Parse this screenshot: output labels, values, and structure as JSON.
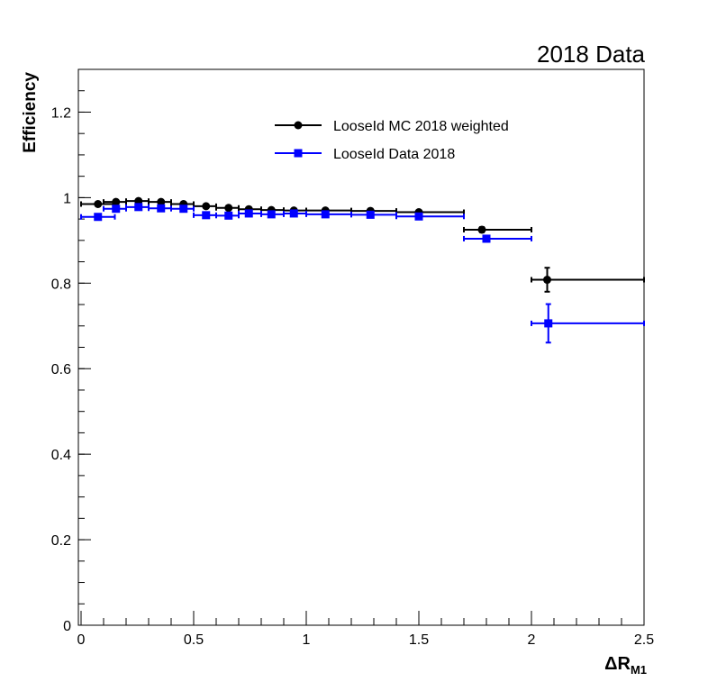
{
  "chart_data": {
    "type": "scatter",
    "title": "2018 Data",
    "xlabel": "ΔR",
    "xlabel_sub": "M1",
    "ylabel": "Efficiency",
    "xlim": [
      0,
      2.5
    ],
    "ylim": [
      0,
      1.3
    ],
    "x_ticks": [
      0,
      0.5,
      1,
      1.5,
      2,
      2.5
    ],
    "x_tick_labels": [
      "0",
      "0.5",
      "1",
      "1.5",
      "2",
      "2.5"
    ],
    "y_ticks": [
      0,
      0.2,
      0.4,
      0.6,
      0.8,
      1,
      1.2
    ],
    "y_tick_labels": [
      "0",
      "0.2",
      "0.4",
      "0.6",
      "0.8",
      "1",
      "1.2"
    ],
    "grid": false,
    "legend_position": "top-center",
    "series": [
      {
        "name": "LooseId MC 2018 weighted",
        "color": "#000000",
        "marker": "circle",
        "points": [
          {
            "x": 0.075,
            "xlo": 0.0,
            "xhi": 0.15,
            "y": 0.985,
            "ylo": 0.982,
            "yhi": 0.988
          },
          {
            "x": 0.155,
            "xlo": 0.1,
            "xhi": 0.2,
            "y": 0.99,
            "ylo": 0.987,
            "yhi": 0.993
          },
          {
            "x": 0.255,
            "xlo": 0.2,
            "xhi": 0.3,
            "y": 0.992,
            "ylo": 0.989,
            "yhi": 0.995
          },
          {
            "x": 0.355,
            "xlo": 0.3,
            "xhi": 0.4,
            "y": 0.99,
            "ylo": 0.987,
            "yhi": 0.993
          },
          {
            "x": 0.455,
            "xlo": 0.4,
            "xhi": 0.5,
            "y": 0.985,
            "ylo": 0.982,
            "yhi": 0.988
          },
          {
            "x": 0.555,
            "xlo": 0.5,
            "xhi": 0.6,
            "y": 0.98,
            "ylo": 0.977,
            "yhi": 0.983
          },
          {
            "x": 0.655,
            "xlo": 0.6,
            "xhi": 0.7,
            "y": 0.976,
            "ylo": 0.973,
            "yhi": 0.979
          },
          {
            "x": 0.745,
            "xlo": 0.7,
            "xhi": 0.8,
            "y": 0.973,
            "ylo": 0.97,
            "yhi": 0.976
          },
          {
            "x": 0.845,
            "xlo": 0.8,
            "xhi": 0.9,
            "y": 0.971,
            "ylo": 0.968,
            "yhi": 0.974
          },
          {
            "x": 0.945,
            "xlo": 0.9,
            "xhi": 1.0,
            "y": 0.97,
            "ylo": 0.967,
            "yhi": 0.973
          },
          {
            "x": 1.085,
            "xlo": 1.0,
            "xhi": 1.2,
            "y": 0.97,
            "ylo": 0.967,
            "yhi": 0.973
          },
          {
            "x": 1.285,
            "xlo": 1.2,
            "xhi": 1.4,
            "y": 0.969,
            "ylo": 0.966,
            "yhi": 0.972
          },
          {
            "x": 1.5,
            "xlo": 1.4,
            "xhi": 1.7,
            "y": 0.966,
            "ylo": 0.963,
            "yhi": 0.969
          },
          {
            "x": 1.78,
            "xlo": 1.7,
            "xhi": 2.0,
            "y": 0.925,
            "ylo": 0.919,
            "yhi": 0.931
          },
          {
            "x": 2.07,
            "xlo": 2.0,
            "xhi": 2.5,
            "y": 0.808,
            "ylo": 0.78,
            "yhi": 0.836
          }
        ]
      },
      {
        "name": "LooseId Data 2018",
        "color": "#0000ff",
        "marker": "square",
        "points": [
          {
            "x": 0.075,
            "xlo": 0.0,
            "xhi": 0.15,
            "y": 0.955,
            "ylo": 0.952,
            "yhi": 0.958
          },
          {
            "x": 0.155,
            "xlo": 0.1,
            "xhi": 0.2,
            "y": 0.974,
            "ylo": 0.971,
            "yhi": 0.977
          },
          {
            "x": 0.255,
            "xlo": 0.2,
            "xhi": 0.3,
            "y": 0.978,
            "ylo": 0.975,
            "yhi": 0.981
          },
          {
            "x": 0.355,
            "xlo": 0.3,
            "xhi": 0.4,
            "y": 0.975,
            "ylo": 0.972,
            "yhi": 0.978
          },
          {
            "x": 0.455,
            "xlo": 0.4,
            "xhi": 0.5,
            "y": 0.974,
            "ylo": 0.971,
            "yhi": 0.977
          },
          {
            "x": 0.555,
            "xlo": 0.5,
            "xhi": 0.6,
            "y": 0.959,
            "ylo": 0.956,
            "yhi": 0.962
          },
          {
            "x": 0.655,
            "xlo": 0.6,
            "xhi": 0.7,
            "y": 0.958,
            "ylo": 0.955,
            "yhi": 0.961
          },
          {
            "x": 0.745,
            "xlo": 0.7,
            "xhi": 0.8,
            "y": 0.963,
            "ylo": 0.96,
            "yhi": 0.966
          },
          {
            "x": 0.845,
            "xlo": 0.8,
            "xhi": 0.9,
            "y": 0.961,
            "ylo": 0.958,
            "yhi": 0.964
          },
          {
            "x": 0.945,
            "xlo": 0.9,
            "xhi": 1.0,
            "y": 0.963,
            "ylo": 0.96,
            "yhi": 0.966
          },
          {
            "x": 1.085,
            "xlo": 1.0,
            "xhi": 1.2,
            "y": 0.961,
            "ylo": 0.958,
            "yhi": 0.964
          },
          {
            "x": 1.285,
            "xlo": 1.2,
            "xhi": 1.4,
            "y": 0.96,
            "ylo": 0.957,
            "yhi": 0.963
          },
          {
            "x": 1.5,
            "xlo": 1.4,
            "xhi": 1.7,
            "y": 0.956,
            "ylo": 0.953,
            "yhi": 0.959
          },
          {
            "x": 1.8,
            "xlo": 1.7,
            "xhi": 2.0,
            "y": 0.904,
            "ylo": 0.897,
            "yhi": 0.911
          },
          {
            "x": 2.075,
            "xlo": 2.0,
            "xhi": 2.5,
            "y": 0.706,
            "ylo": 0.661,
            "yhi": 0.751
          }
        ]
      }
    ]
  }
}
